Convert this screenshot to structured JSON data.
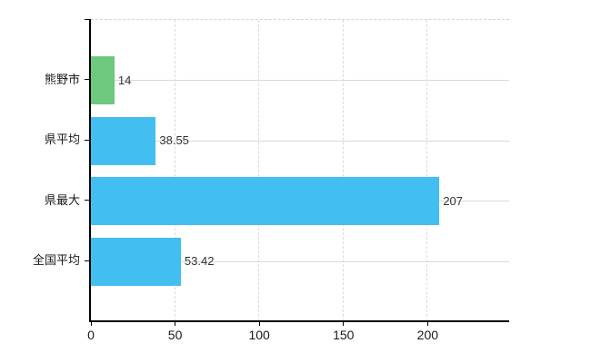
{
  "chart_data": {
    "type": "bar",
    "orientation": "horizontal",
    "title": "",
    "xlabel": "",
    "ylabel": "",
    "categories": [
      "熊野市",
      "県平均",
      "県最大",
      "全国平均"
    ],
    "values": [
      14,
      38.55,
      207,
      53.42
    ],
    "value_labels": [
      "14",
      "38.55",
      "207",
      "53.42"
    ],
    "bar_colors": [
      "#6ec87e",
      "#42bff0",
      "#42bff0",
      "#42bff0"
    ],
    "xlim": [
      0,
      248.4
    ],
    "x_ticks": [
      0,
      50,
      100,
      150,
      200
    ],
    "x_tick_labels": [
      "0",
      "50",
      "100",
      "150",
      "200"
    ],
    "grid": "on",
    "legend_position": "none"
  },
  "colors": {
    "background": "#ffffff",
    "bar_green": "#6ec87e",
    "bar_blue": "#42bff0",
    "gridline_horizontal": "#d5ddd5",
    "gridline_vertical": "#ded8dc",
    "plot_border_top": "#d9d2d2",
    "axis": "#000000",
    "value_text": "#333333",
    "label_text": "#1a1a1a"
  }
}
